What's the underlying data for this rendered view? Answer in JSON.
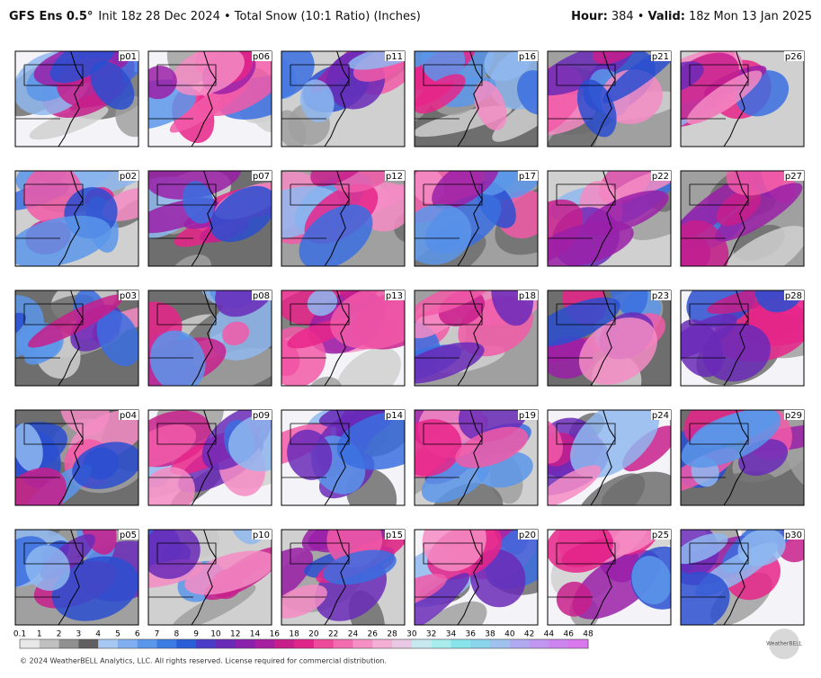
{
  "header": {
    "model": "GFS Ens 0.5°",
    "subtitle": "Init 18z 28 Dec 2024 • Total Snow (10:1 Ratio) (Inches)",
    "hour_label": "Hour:",
    "hour_value": "384 •",
    "valid_label": "Valid:",
    "valid_value": "18z Mon 13 Jan 2025"
  },
  "panels": [
    "p01",
    "p02",
    "p03",
    "p04",
    "p05",
    "p06",
    "p07",
    "p08",
    "p09",
    "p10",
    "p11",
    "p12",
    "p13",
    "p14",
    "p15",
    "p16",
    "p17",
    "p18",
    "p19",
    "p20",
    "p21",
    "p22",
    "p23",
    "p24",
    "p25",
    "p26",
    "p27",
    "p28",
    "p29",
    "p30"
  ],
  "colorbar": {
    "labels": [
      "0.1",
      "1",
      "2",
      "3",
      "4",
      "5",
      "6",
      "7",
      "8",
      "9",
      "10",
      "12",
      "14",
      "16",
      "18",
      "20",
      "22",
      "24",
      "26",
      "28",
      "30",
      "32",
      "34",
      "36",
      "38",
      "40",
      "42",
      "44",
      "46",
      "48"
    ]
  },
  "footer": "© 2024 WeatherBELL Analytics, LLC. All rights reserved. License required for commercial distribution.",
  "logo": "WeatherBELL"
}
